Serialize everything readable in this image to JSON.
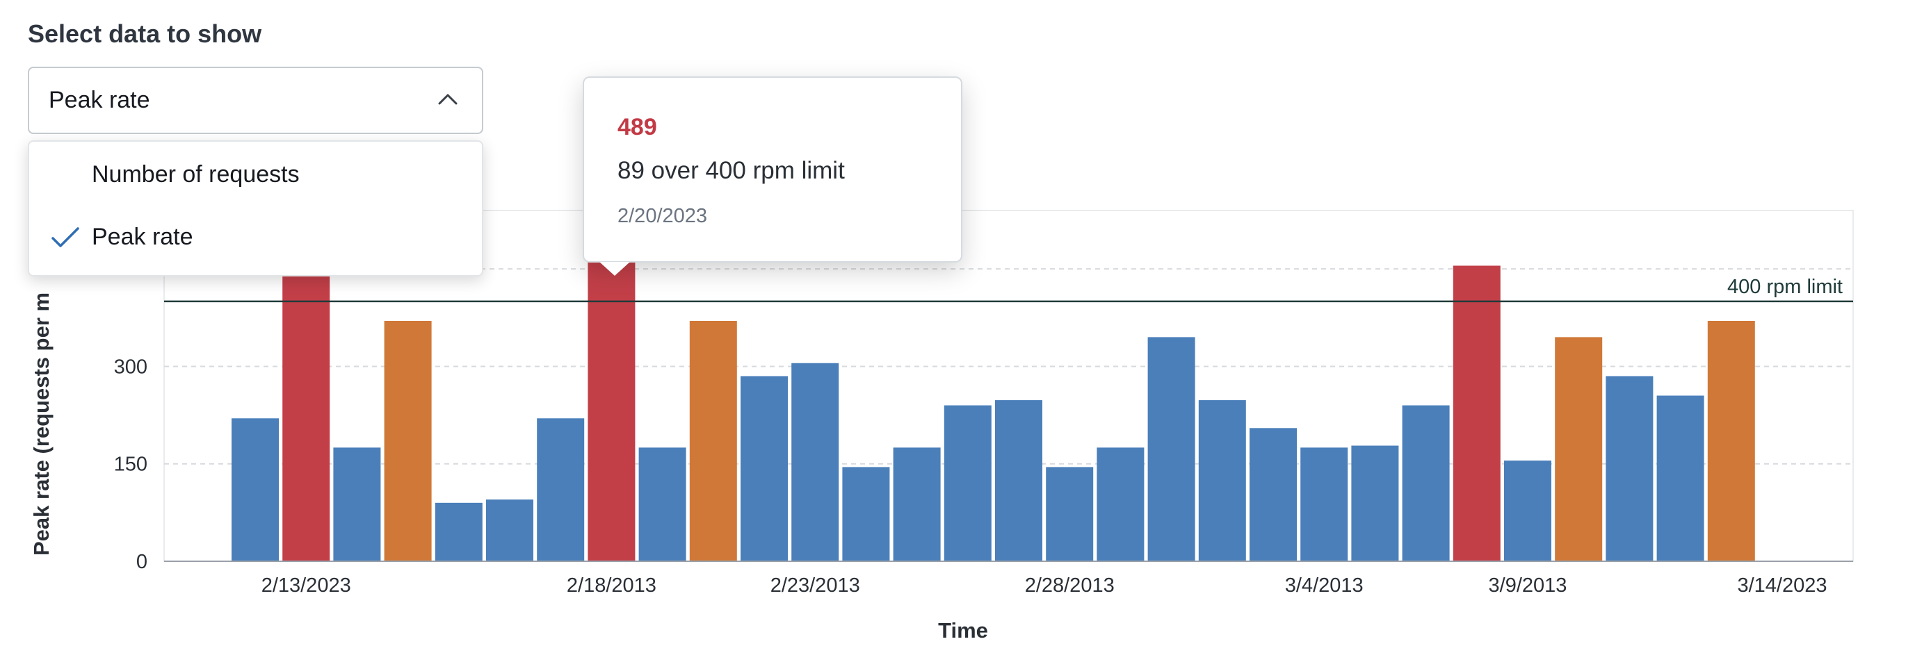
{
  "selector": {
    "label": "Select data to show",
    "selected": "Peak rate",
    "options": [
      {
        "label": "Number of requests",
        "checked": false
      },
      {
        "label": "Peak rate",
        "checked": true
      }
    ]
  },
  "tooltip": {
    "value": "489",
    "description": "89 over 400 rpm limit",
    "date": "2/20/2023"
  },
  "chart_data": {
    "type": "bar",
    "title": "",
    "xlabel": "Time",
    "ylabel": "Peak rate (requests  per m",
    "ylim": [
      0,
      520
    ],
    "y_ticks": [
      0,
      150,
      300,
      450
    ],
    "grid": true,
    "x_tick_labels": [
      "2/13/2023",
      "2/18/2013",
      "2/23/2013",
      "2/28/2013",
      "3/4/2013",
      "3/9/2013",
      "3/14/2023"
    ],
    "x_tick_bar_index": [
      1,
      7,
      11,
      16,
      21,
      25,
      30
    ],
    "reference_line": {
      "value": 400,
      "label": "400 rpm limit"
    },
    "colors": {
      "normal": "#4a7fba",
      "warning": "#d07837",
      "over_limit": "#c23f48",
      "reference": "#1f3b3a"
    },
    "values": [
      220,
      520,
      175,
      370,
      90,
      95,
      220,
      520,
      175,
      370,
      285,
      305,
      145,
      175,
      240,
      248,
      145,
      175,
      345,
      248,
      205,
      175,
      178,
      240,
      455,
      155,
      345,
      285,
      255,
      370
    ],
    "status": [
      "normal",
      "over_limit",
      "normal",
      "warning",
      "normal",
      "normal",
      "normal",
      "over_limit",
      "normal",
      "warning",
      "normal",
      "normal",
      "normal",
      "normal",
      "normal",
      "normal",
      "normal",
      "normal",
      "normal",
      "normal",
      "normal",
      "normal",
      "normal",
      "normal",
      "over_limit",
      "normal",
      "warning",
      "normal",
      "normal",
      "warning"
    ]
  }
}
